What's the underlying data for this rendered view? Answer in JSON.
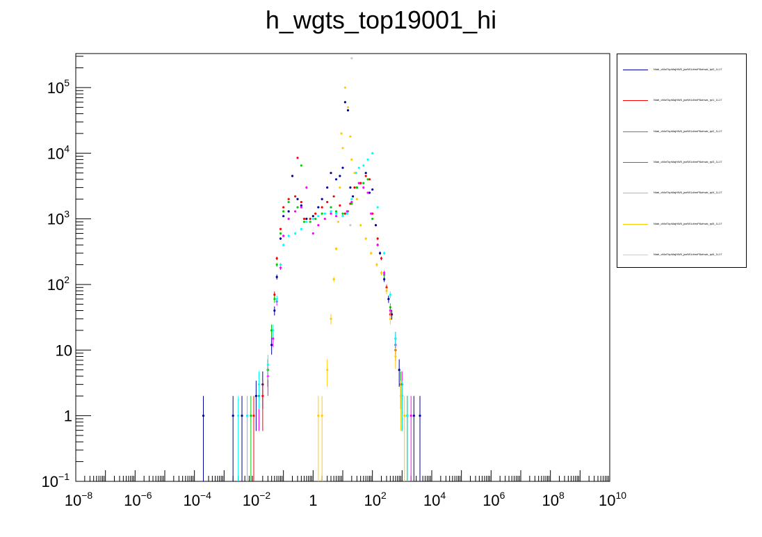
{
  "title": "h_wgts_top19001_hi",
  "chart_data": {
    "type": "scatter",
    "title": "h_wgts_top19001_hi",
    "xscale": "log",
    "yscale": "log",
    "xlim": [
      1e-08,
      10000000000.0
    ],
    "ylim": [
      0.1,
      330000
    ],
    "grid": false,
    "legend_position": "right",
    "x_tick_labels": [
      {
        "value": 1e-08,
        "base": "10",
        "exp": "−8"
      },
      {
        "value": 1e-06,
        "base": "10",
        "exp": "−6"
      },
      {
        "value": 0.0001,
        "base": "10",
        "exp": "−4"
      },
      {
        "value": 0.01,
        "base": "10",
        "exp": "−2"
      },
      {
        "value": 1,
        "base": "1",
        "exp": ""
      },
      {
        "value": 100.0,
        "base": "10",
        "exp": "2"
      },
      {
        "value": 10000.0,
        "base": "10",
        "exp": "4"
      },
      {
        "value": 1000000.0,
        "base": "10",
        "exp": "6"
      },
      {
        "value": 100000000.0,
        "base": "10",
        "exp": "8"
      },
      {
        "value": 10000000000.0,
        "base": "10",
        "exp": "10"
      }
    ],
    "y_tick_labels": [
      {
        "value": 0.1,
        "base": "10",
        "exp": "−1"
      },
      {
        "value": 1,
        "base": "1",
        "exp": ""
      },
      {
        "value": 10,
        "base": "10",
        "exp": ""
      },
      {
        "value": 100,
        "base": "10",
        "exp": "2"
      },
      {
        "value": 1000,
        "base": "10",
        "exp": "3"
      },
      {
        "value": 10000,
        "base": "10",
        "exp": "4"
      },
      {
        "value": 100000,
        "base": "10",
        "exp": "5"
      }
    ],
    "series": [
      {
        "color": "#000099",
        "points": [
          [
            0.0002,
            1
          ],
          [
            0.002,
            1
          ],
          [
            0.004,
            1
          ],
          [
            0.012,
            2
          ],
          [
            0.02,
            3
          ],
          [
            0.03,
            5
          ],
          [
            0.04,
            12
          ],
          [
            0.05,
            40
          ],
          [
            0.06,
            130
          ],
          [
            0.08,
            500
          ],
          [
            0.1,
            1100
          ],
          [
            0.15,
            1300
          ],
          [
            0.2,
            4500
          ],
          [
            0.3,
            2000
          ],
          [
            0.4,
            1600
          ],
          [
            0.6,
            1000
          ],
          [
            1,
            1100
          ],
          [
            1.5,
            1500
          ],
          [
            2,
            2000
          ],
          [
            3,
            3000
          ],
          [
            4,
            5000
          ],
          [
            6,
            4000
          ],
          [
            8,
            4500
          ],
          [
            10,
            6000
          ],
          [
            12,
            60000
          ],
          [
            15,
            45000
          ],
          [
            18,
            3000
          ],
          [
            22,
            2200
          ],
          [
            30,
            3000
          ],
          [
            40,
            3500
          ],
          [
            60,
            5000
          ],
          [
            80,
            2500
          ],
          [
            100,
            2800
          ],
          [
            130,
            800
          ],
          [
            180,
            300
          ],
          [
            250,
            120
          ],
          [
            350,
            60
          ],
          [
            450,
            35
          ],
          [
            600,
            15
          ],
          [
            800,
            5
          ],
          [
            1000,
            2
          ],
          [
            1500,
            1
          ],
          [
            2500,
            1
          ],
          [
            4000,
            1
          ]
        ]
      },
      {
        "color": "#ff0000",
        "points": [
          [
            0.01,
            1
          ],
          [
            0.02,
            2
          ],
          [
            0.03,
            5
          ],
          [
            0.04,
            20
          ],
          [
            0.05,
            70
          ],
          [
            0.06,
            250
          ],
          [
            0.08,
            700
          ],
          [
            0.1,
            1500
          ],
          [
            0.15,
            2000
          ],
          [
            0.25,
            2200
          ],
          [
            0.3,
            8500
          ],
          [
            0.4,
            1800
          ],
          [
            0.5,
            1000
          ],
          [
            0.8,
            1000
          ],
          [
            1.2,
            1200
          ],
          [
            2,
            1500
          ],
          [
            3,
            1800
          ],
          [
            5,
            2200
          ],
          [
            8,
            1600
          ],
          [
            12,
            1200
          ],
          [
            18,
            1700
          ],
          [
            25,
            3000
          ],
          [
            40,
            3500
          ],
          [
            60,
            4500
          ],
          [
            80,
            4000
          ],
          [
            100,
            1200
          ],
          [
            150,
            500
          ],
          [
            200,
            250
          ],
          [
            300,
            90
          ],
          [
            400,
            35
          ],
          [
            600,
            10
          ],
          [
            900,
            3
          ],
          [
            1500,
            1
          ]
        ]
      },
      {
        "color": "#00cc00",
        "points": [
          [
            0.008,
            1
          ],
          [
            0.015,
            2
          ],
          [
            0.03,
            5
          ],
          [
            0.04,
            20
          ],
          [
            0.05,
            60
          ],
          [
            0.06,
            200
          ],
          [
            0.08,
            600
          ],
          [
            0.1,
            1300
          ],
          [
            0.15,
            1800
          ],
          [
            0.3,
            1500
          ],
          [
            0.4,
            6500
          ],
          [
            0.5,
            900
          ],
          [
            0.8,
            900
          ],
          [
            1.2,
            1000
          ],
          [
            2,
            1200
          ],
          [
            4,
            1500
          ],
          [
            6,
            1300
          ],
          [
            10,
            1200
          ],
          [
            15,
            1300
          ],
          [
            20,
            1700
          ],
          [
            30,
            3000
          ],
          [
            50,
            3500
          ],
          [
            70,
            4000
          ],
          [
            100,
            1000
          ],
          [
            150,
            400
          ],
          [
            250,
            140
          ],
          [
            400,
            45
          ],
          [
            600,
            12
          ],
          [
            900,
            3
          ],
          [
            1500,
            1
          ]
        ]
      },
      {
        "color": "#ff00ff",
        "points": [
          [
            0.006,
            1
          ],
          [
            0.015,
            2
          ],
          [
            0.03,
            4
          ],
          [
            0.045,
            15
          ],
          [
            0.06,
            55
          ],
          [
            0.08,
            180
          ],
          [
            0.1,
            550
          ],
          [
            0.15,
            1000
          ],
          [
            0.25,
            1300
          ],
          [
            0.4,
            1500
          ],
          [
            0.6,
            3000
          ],
          [
            1,
            600
          ],
          [
            1.5,
            800
          ],
          [
            2.5,
            1000
          ],
          [
            4,
            1200
          ],
          [
            6,
            1100
          ],
          [
            10,
            1100
          ],
          [
            14,
            1300
          ],
          [
            20,
            1800
          ],
          [
            28,
            5000
          ],
          [
            35,
            3500
          ],
          [
            50,
            3000
          ],
          [
            70,
            2500
          ],
          [
            90,
            1200
          ],
          [
            150,
            400
          ],
          [
            250,
            150
          ],
          [
            400,
            40
          ],
          [
            600,
            12
          ],
          [
            1000,
            3
          ],
          [
            2000,
            1
          ]
        ]
      },
      {
        "color": "#00ffff",
        "points": [
          [
            0.003,
            1
          ],
          [
            0.006,
            1
          ],
          [
            0.015,
            3
          ],
          [
            0.03,
            6
          ],
          [
            0.045,
            20
          ],
          [
            0.06,
            60
          ],
          [
            0.08,
            200
          ],
          [
            0.1,
            400
          ],
          [
            0.15,
            550
          ],
          [
            0.25,
            600
          ],
          [
            0.4,
            700
          ],
          [
            0.6,
            900
          ],
          [
            1,
            1000
          ],
          [
            1.5,
            1100
          ],
          [
            2.5,
            1200
          ],
          [
            4,
            1300
          ],
          [
            6,
            1200
          ],
          [
            10,
            1100
          ],
          [
            14,
            1200
          ],
          [
            20,
            2000
          ],
          [
            28,
            5000
          ],
          [
            35,
            6000
          ],
          [
            50,
            6500
          ],
          [
            70,
            8000
          ],
          [
            100,
            10000
          ],
          [
            150,
            1500
          ],
          [
            250,
            300
          ],
          [
            400,
            70
          ],
          [
            600,
            15
          ],
          [
            1000,
            2
          ],
          [
            1500,
            1
          ]
        ]
      },
      {
        "color": "#ffcc00",
        "points": [
          [
            1.5,
            1
          ],
          [
            2,
            1
          ],
          [
            3,
            5
          ],
          [
            4,
            30
          ],
          [
            5,
            120
          ],
          [
            6,
            350
          ],
          [
            7,
            900
          ],
          [
            8,
            3000
          ],
          [
            9,
            20000
          ],
          [
            10,
            12000
          ],
          [
            12,
            100000
          ],
          [
            15,
            50000
          ],
          [
            18,
            18000
          ],
          [
            20,
            8000
          ],
          [
            25,
            5000
          ],
          [
            30,
            2000
          ],
          [
            40,
            800
          ],
          [
            60,
            500
          ],
          [
            90,
            300
          ],
          [
            140,
            200
          ],
          [
            200,
            150
          ],
          [
            300,
            80
          ],
          [
            400,
            30
          ],
          [
            600,
            8
          ],
          [
            900,
            2
          ],
          [
            1200,
            1
          ]
        ]
      },
      {
        "color": "#cccccc",
        "points": [
          [
            20,
            280000
          ],
          [
            18,
            800
          ]
        ]
      }
    ]
  },
  "legend": {
    "entries": [
      {
        "color": "#000099",
        "label": "Nlab_cMotTopMajHW5_jsnfW1dhmP8ofnwk_rpl0_1L17"
      },
      {
        "color": "#ff0000",
        "label": "Nlab_cMotTopMajHW5_jsnfW1dhmP8ofnwk_rpl1_1L17"
      },
      {
        "color": "#00cc00",
        "label": "Nlab_cMotTopMajHW5_jsnfW1dhmP8ofnwk_rpl2_1L17"
      },
      {
        "color": "#ff00ff",
        "label": "Nlab_cMotTopMajHW5_jsnfW1dhmP8ofnwk_rpl3_1L17"
      },
      {
        "color": "#00ffff",
        "label": "Nlab_cMotTopMajHW5_jsnfW1dhmP8ofnwk_rpl4_1L17"
      },
      {
        "color": "#ffcc00",
        "label": "Nlab_cMotTopMajHW5_jsnfW1dhmP8ofnwk_rpl5_1L17"
      },
      {
        "color": "#cccccc",
        "label": "Nlab_cMotTopMajHW5_jsnfW1dhmP8ofnwk_rpl6_1L17"
      }
    ]
  }
}
